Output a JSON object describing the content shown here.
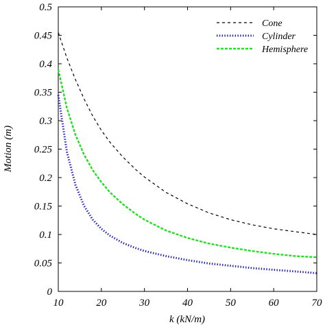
{
  "chart_data": {
    "type": "line",
    "title": "",
    "xlabel": "k (kN/m)",
    "ylabel": "Motion (m)",
    "xlim": [
      10,
      70
    ],
    "ylim": [
      0,
      0.5
    ],
    "xticks": [
      "10",
      "20",
      "30",
      "40",
      "50",
      "60",
      "70"
    ],
    "yticks": [
      "0",
      "0.05",
      "0.1",
      "0.15",
      "0.2",
      "0.25",
      "0.3",
      "0.35",
      "0.4",
      "0.45",
      "0.5"
    ],
    "grid": false,
    "legend_position": "top-right",
    "x": [
      10,
      12,
      14,
      16,
      18,
      20,
      22,
      25,
      28,
      30,
      35,
      40,
      45,
      50,
      55,
      60,
      65,
      70
    ],
    "series": [
      {
        "name": "Cone",
        "color": "#000000",
        "style": "dashed",
        "values": [
          0.455,
          0.41,
          0.372,
          0.338,
          0.308,
          0.283,
          0.262,
          0.236,
          0.214,
          0.201,
          0.174,
          0.154,
          0.138,
          0.126,
          0.117,
          0.11,
          0.105,
          0.1
        ]
      },
      {
        "name": "Cylinder",
        "color": "#1a1ab8",
        "style": "dotted",
        "values": [
          0.345,
          0.245,
          0.187,
          0.15,
          0.126,
          0.11,
          0.098,
          0.085,
          0.076,
          0.071,
          0.062,
          0.055,
          0.049,
          0.045,
          0.041,
          0.038,
          0.035,
          0.032
        ]
      },
      {
        "name": "Hemisphere",
        "color": "#22dd22",
        "style": "dashed",
        "values": [
          0.39,
          0.322,
          0.275,
          0.24,
          0.213,
          0.192,
          0.174,
          0.153,
          0.136,
          0.126,
          0.107,
          0.094,
          0.084,
          0.077,
          0.071,
          0.066,
          0.062,
          0.06
        ]
      }
    ]
  }
}
